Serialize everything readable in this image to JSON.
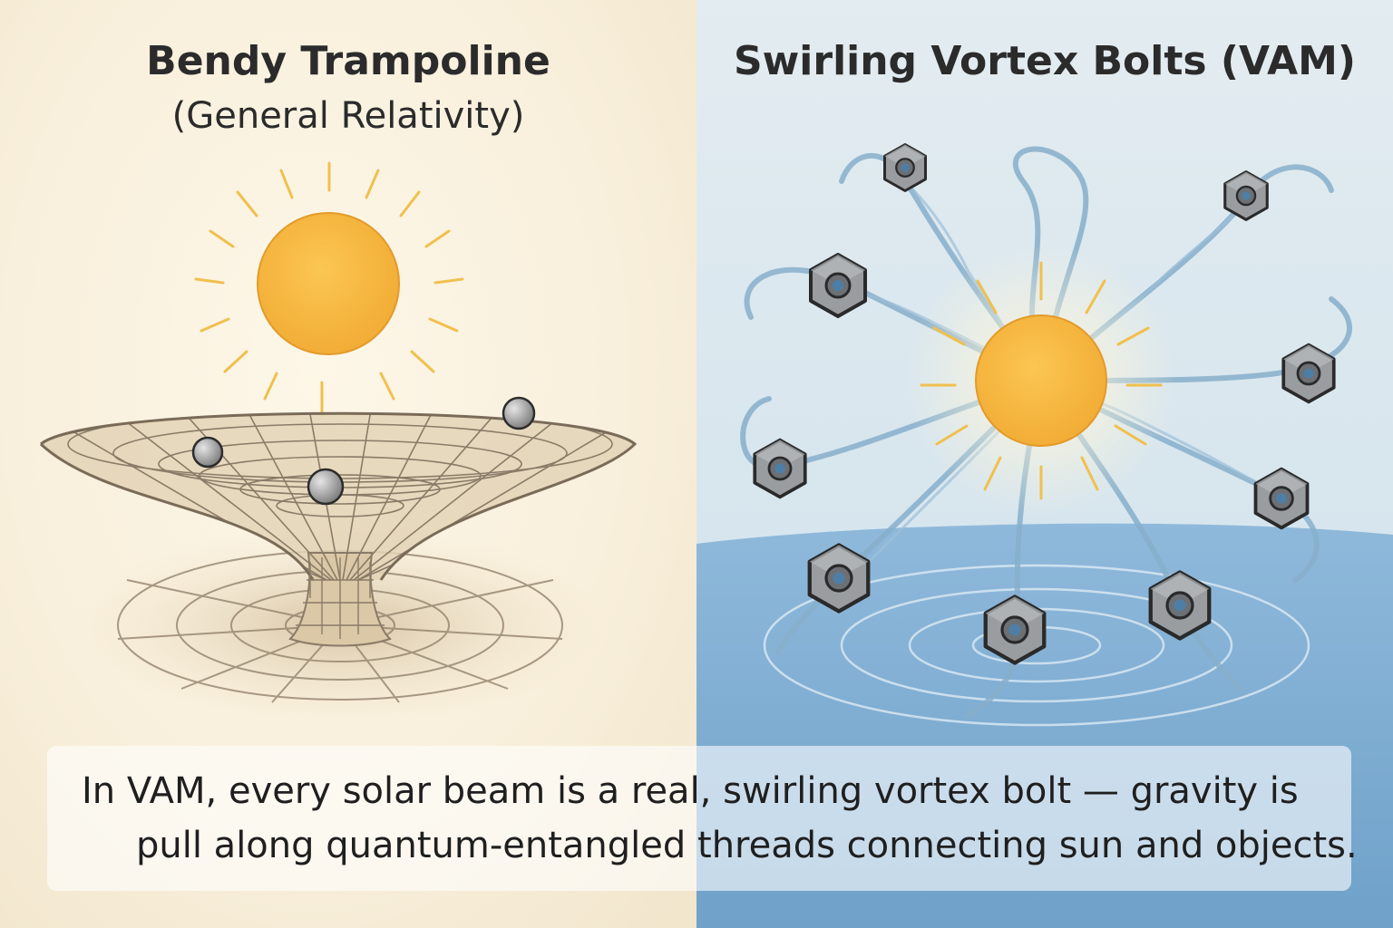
{
  "left_panel": {
    "title": "Bendy Trampoline",
    "subtitle": "(General Relativity)",
    "colors": {
      "sun": "#f6b941",
      "sun_ray": "#f2c14e",
      "grid": "#8a7b68",
      "mass": "#6e6e6e"
    },
    "icons": [
      "sun-icon",
      "spacetime-grid-icon",
      "mass-ball-icon"
    ]
  },
  "right_panel": {
    "title": "Swirling Vortex Bolts (VAM)",
    "colors": {
      "sun": "#f6b941",
      "thread": "#87afcb",
      "water": "#82aed2",
      "nut": "#8f9295"
    },
    "icons": [
      "sun-icon",
      "vortex-thread-icon",
      "hex-nut-icon",
      "ripple-icon"
    ]
  },
  "caption": {
    "line1": "In VAM, every solar beam is a real, swirling vortex bolt — gravity is",
    "line2": "pull along quantum-entangled threads connecting sun and objects."
  }
}
